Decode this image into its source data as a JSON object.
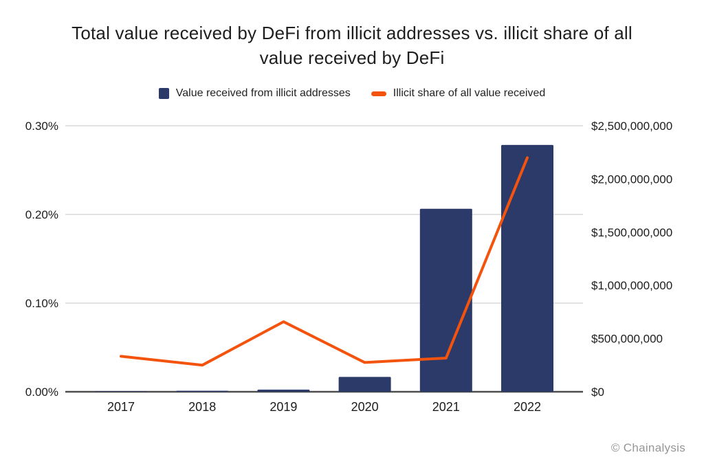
{
  "title": {
    "line1": "Total value received by DeFi from illicit addresses vs. illicit share of all",
    "line2": "value received by DeFi"
  },
  "legend": {
    "items": [
      {
        "label": "Value received from illicit addresses",
        "marker": "square"
      },
      {
        "label": "Illicit share of all value received",
        "marker": "dash"
      }
    ]
  },
  "footer": {
    "credit": "© Chainalysis"
  },
  "colors": {
    "bar": "#2b3a69",
    "line": "#f4530e",
    "gridline": "#d9d9d9",
    "axis": "#4d4d4d",
    "tick_text": "#1c1c1c",
    "title_text": "#1e1e1e",
    "footer_text": "#969696"
  },
  "chart_data": {
    "type": "bar+line combo",
    "title": "Total value received by DeFi from illicit addresses vs. illicit share of all value received by DeFi",
    "categories": [
      "2017",
      "2018",
      "2019",
      "2020",
      "2021",
      "2022"
    ],
    "series": [
      {
        "name": "Value received from illicit addresses",
        "type": "bar",
        "axis": "right",
        "unit": "USD",
        "values": [
          5000000,
          10000000,
          20000000,
          140000000,
          1720000000,
          2320000000
        ]
      },
      {
        "name": "Illicit share of all value received",
        "type": "line",
        "axis": "left",
        "unit": "percent",
        "values": [
          0.04,
          0.03,
          0.079,
          0.033,
          0.038,
          0.264
        ]
      }
    ],
    "left_axis": {
      "min": 0,
      "max": 0.3,
      "ticks": [
        {
          "value": 0.3,
          "label": "0.30%"
        },
        {
          "value": 0.2,
          "label": "0.20%"
        },
        {
          "value": 0.1,
          "label": "0.10%"
        },
        {
          "value": 0.0,
          "label": "0.00%"
        }
      ]
    },
    "right_axis": {
      "min": 0,
      "max": 2500000000,
      "ticks": [
        {
          "value": 2500000000,
          "label": "$2,500,000,000"
        },
        {
          "value": 2000000000,
          "label": "$2,000,000,000"
        },
        {
          "value": 1500000000,
          "label": "$1,500,000,000"
        },
        {
          "value": 1000000000,
          "label": "$1,000,000,000"
        },
        {
          "value": 500000000,
          "label": "$500,000,000"
        },
        {
          "value": 0,
          "label": "$0"
        }
      ]
    },
    "grid": "horizontal gridlines at left-axis ticks only",
    "legend_position": "top-center"
  }
}
